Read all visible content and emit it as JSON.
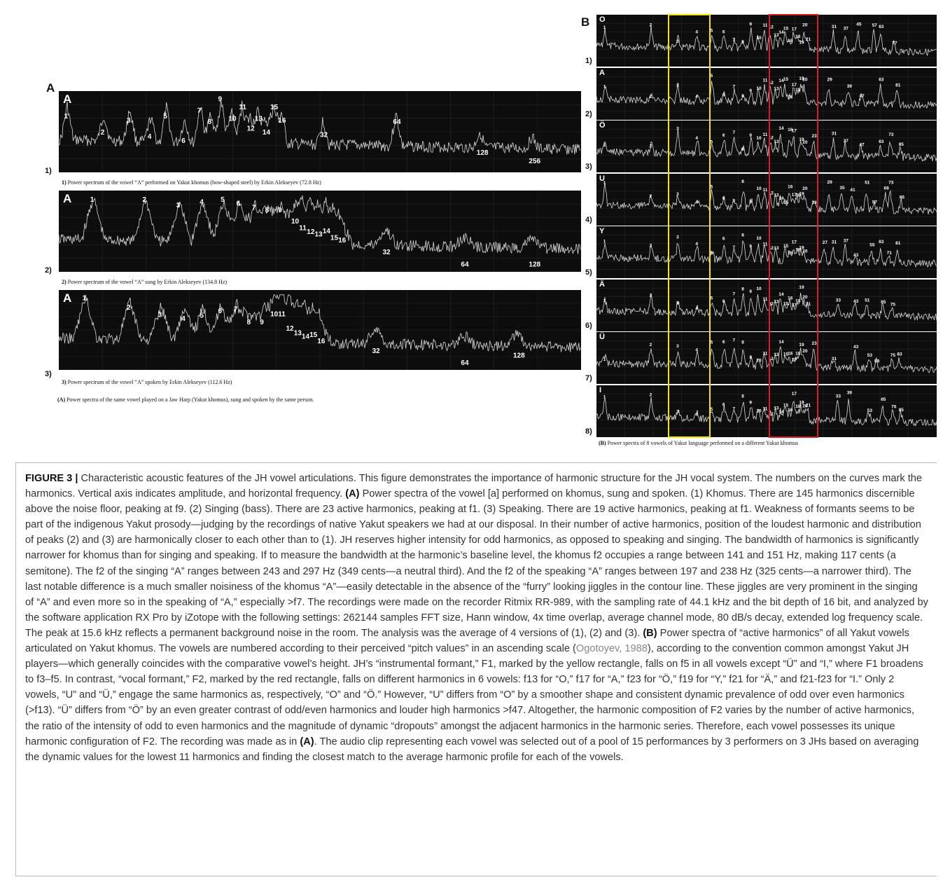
{
  "panelA": {
    "letter": "A",
    "plots": [
      {
        "row": "1)",
        "vowel": "A",
        "caption_num": "1)",
        "caption": " Power spectrum of the vowel “A” performed on Yakut khomus (bow-shaped steel) by Erkin Alekseyev (72.8 Hz)",
        "harmonics": [
          "1",
          "2",
          "3",
          "4",
          "5",
          "6",
          "7",
          "8",
          "9",
          "10",
          "11",
          "12",
          "13",
          "14",
          "15",
          "16",
          "32",
          "64",
          "128",
          "256"
        ]
      },
      {
        "row": "2)",
        "vowel": "A",
        "caption_num": "2)",
        "caption": " Power spectrum of the vowel “A” sung by Erkin Alekseyev (134.8 Hz)",
        "harmonics": [
          "1",
          "2",
          "3",
          "4",
          "5",
          "6",
          "7",
          "8",
          "9",
          "10",
          "11",
          "12",
          "13",
          "14",
          "15",
          "16",
          "32",
          "64",
          "128"
        ]
      },
      {
        "row": "3)",
        "vowel": "A",
        "caption_num": "3)",
        "caption": " Power spectrum of the vowel “A” spoken by Erkin Alekseyev (112.6 Hz)",
        "harmonics": [
          "1",
          "2",
          "3",
          "4",
          "5",
          "6",
          "7",
          "8",
          "9",
          "10",
          "11",
          "12",
          "13",
          "14",
          "15",
          "16",
          "32",
          "64",
          "128"
        ]
      }
    ],
    "caption_label": "(A)",
    "caption": " Power spectra of the same vowel played on a Jaw Harp (Yakut khomus), sung and spoken by the same person."
  },
  "panelB": {
    "letter": "B",
    "plots": [
      {
        "row": "1)",
        "vowel": "O",
        "harmonics": [
          "1",
          "2",
          "3",
          "4",
          "5",
          "6",
          "7",
          "8",
          "9",
          "10",
          "11",
          "12",
          "13",
          "14",
          "15",
          "16",
          "17",
          "18",
          "19",
          "20",
          "21",
          "31",
          "37",
          "45",
          "57",
          "63",
          "77"
        ]
      },
      {
        "row": "2)",
        "vowel": "A",
        "harmonics": [
          "1",
          "2",
          "3",
          "4",
          "5",
          "6",
          "7",
          "8",
          "9",
          "10",
          "11",
          "12",
          "13",
          "14",
          "15",
          "16",
          "17",
          "18",
          "19",
          "20",
          "29",
          "39",
          "47",
          "63",
          "81"
        ]
      },
      {
        "row": "3)",
        "vowel": "Ö",
        "harmonics": [
          "1",
          "2",
          "3",
          "4",
          "5",
          "6",
          "7",
          "8",
          "9",
          "10",
          "11",
          "12",
          "13",
          "14",
          "16",
          "17",
          "19",
          "20",
          "23",
          "31",
          "37",
          "47",
          "63",
          "73",
          "85"
        ]
      },
      {
        "row": "4)",
        "vowel": "U",
        "harmonics": [
          "1",
          "2",
          "3",
          "4",
          "5",
          "6",
          "7",
          "8",
          "9",
          "10",
          "11",
          "12",
          "13",
          "14",
          "15",
          "16",
          "17",
          "18",
          "19",
          "20",
          "23",
          "29",
          "35",
          "41",
          "51",
          "57",
          "68",
          "73",
          "86"
        ]
      },
      {
        "row": "5)",
        "vowel": "Y",
        "harmonics": [
          "1",
          "2",
          "3",
          "4",
          "5",
          "6",
          "7",
          "8",
          "9",
          "10",
          "11",
          "12",
          "13",
          "15",
          "16",
          "17",
          "18",
          "19",
          "20",
          "27",
          "31",
          "37",
          "43",
          "55",
          "63",
          "71",
          "81"
        ]
      },
      {
        "row": "6)",
        "vowel": "Ä",
        "harmonics": [
          "1",
          "2",
          "3",
          "4",
          "5",
          "6",
          "7",
          "8",
          "9",
          "10",
          "11",
          "12",
          "13",
          "14",
          "15",
          "16",
          "17",
          "18",
          "19",
          "20",
          "21",
          "33",
          "43",
          "51",
          "65",
          "75"
        ]
      },
      {
        "row": "7)",
        "vowel": "Ü",
        "harmonics": [
          "1",
          "2",
          "3",
          "4",
          "5",
          "6",
          "7",
          "8",
          "9",
          "10",
          "11",
          "12",
          "13",
          "14",
          "15",
          "16",
          "17",
          "18",
          "19",
          "20",
          "23",
          "31",
          "43",
          "53",
          "59",
          "75",
          "83"
        ]
      },
      {
        "row": "8)",
        "vowel": "I",
        "harmonics": [
          "1",
          "2",
          "3",
          "4",
          "5",
          "6",
          "7",
          "8",
          "9",
          "10",
          "11",
          "12",
          "13",
          "14",
          "15",
          "16",
          "17",
          "18",
          "19",
          "20",
          "21",
          "33",
          "39",
          "53",
          "65",
          "76",
          "85"
        ]
      }
    ],
    "caption_label": "(B)",
    "caption": " Power spectra of 8 vowels of Yakut language performed on a different Yakut khomus"
  },
  "caption": {
    "figure_label": "FIGURE 3 |",
    "part1": " Characteristic acoustic features of the JH vowel articulations. This figure demonstrates the importance of harmonic structure for the JH vocal system. The numbers on the curves mark the harmonics. Vertical axis indicates amplitude, and horizontal frequency. ",
    "boldA": "(A)",
    "part2": " Power spectra of the vowel [a] performed on khomus, sung and spoken. (1) Khomus. There are 145 harmonics discernible above the noise floor, peaking at f9. (2) Singing (bass). There are 23 active harmonics, peaking at f1. (3) Speaking. There are 19 active harmonics, peaking at f1. Weakness of formants seems to be part of the indigenous Yakut prosody—judging by the recordings of native Yakut speakers we had at our disposal. In their number of active harmonics, position of the loudest harmonic and distribution of peaks (2) and (3) are harmonically closer to each other than to (1). JH reserves higher intensity for odd harmonics, as opposed to speaking and singing. The bandwidth of harmonics is significantly narrower for khomus than for singing and speaking. If to measure the bandwidth at the harmonic’s baseline level, the khomus f2 occupies a range between 141 and 151 Hz, making 117 cents (a semitone). The f2 of the singing “A” ranges between 243 and 297 Hz (349 cents—a neutral third). And the f2 of the speaking “A” ranges between 197 and 238 Hz (325 cents—a narrower third). The last notable difference is a much smaller noisiness of the khomus “A”—easily detectable in the absence of the “furry” looking jiggles in the contour line. These jiggles are very prominent in the singing of “A” and even more so in the speaking of “A,” especially >f7. The recordings were made on the recorder Ritmix RR-989, with the sampling rate of 44.1 kHz and the bit depth of 16 bit, and analyzed by the software application RX Pro by iZotope with the following settings: 262144 samples FFT size, Hann window, 4x time overlap, average channel mode, 80 dB/s decay, extended log frequency scale. The peak at 15.6 kHz reflects a permanent background noise in the room. The analysis was the average of 4 versions of (1), (2) and (3). ",
    "boldB": "(B)",
    "part3": " Power spectra of “active harmonics” of all Yakut vowels articulated on Yakut khomus. The vowels are numbered according to their perceived “pitch values” in an ascending scale (",
    "citation": "Ogotoyev, 1988",
    "part4": "), according to the convention common amongst Yakut JH players—which generally coincides with the comparative vowel’s height. JH’s “instrumental formant,” F1, marked by the yellow rectangle, falls on f5 in all vowels except “Ü” and “I,” where F1 broadens to f3–f5. In contrast, “vocal formant,” F2, marked by the red rectangle, falls on different harmonics in 6 vowels: f13 for “O,” f17 for “A,” f23 for “Ö,” f19 for “Y,” f21 for “Ä,” and f21-f23 for “I.” Only 2 vowels, “U” and “Ü,” engage the same harmonics as, respectively, “O” and “Ö.” However, “U” differs from “O” by a smoother shape and consistent dynamic prevalence of odd over even harmonics (>f13). “Ü” differs from “Ö” by an even greater contrast of odd/even harmonics and louder high harmonics >f47. Altogether, the harmonic composition of F2 varies by the number of active harmonics, the ratio of the intensity of odd to even harmonics and the magnitude of dynamic “dropouts” amongst the adjacent harmonics in the harmonic series. Therefore, each vowel possesses its unique harmonic configuration of F2. The recording was made as in ",
    "boldA2": "(A)",
    "part5": ". The audio clip representing each vowel was selected out of a pool of 15 performances by 3 performers on 3 JHs based on averaging the dynamic values for the lowest 11 harmonics and finding the closest match to the average harmonic profile for each of the vowels."
  },
  "colors": {
    "spectrum_bg": "#0d0d0d",
    "trace": "#d9d9d9",
    "label": "#ffffff",
    "formant1_box": "#f2e600",
    "formant2_box": "#d81e1e"
  }
}
